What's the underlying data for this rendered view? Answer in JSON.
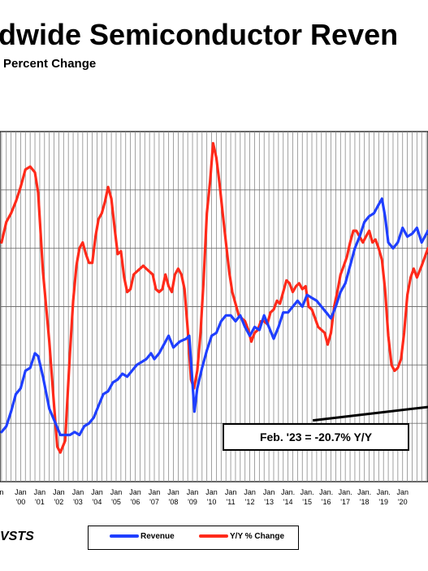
{
  "chart_data": {
    "type": "line",
    "title": "dwide Semiconductor Reven",
    "subtitle": "Percent Change",
    "source_label": "VSTS",
    "annotation": "Feb. '23 = -20.7% Y/Y",
    "x_tick_labels": [
      {
        "top": "n",
        "bottom": "",
        "year": 1999.0
      },
      {
        "top": "Jan",
        "bottom": "'00",
        "year": 2000.0
      },
      {
        "top": "Jan",
        "bottom": "'01",
        "year": 2001.0
      },
      {
        "top": "Jan",
        "bottom": "'02",
        "year": 2002.0
      },
      {
        "top": "Jan",
        "bottom": "'03",
        "year": 2003.0
      },
      {
        "top": "Jan",
        "bottom": "'04",
        "year": 2004.0
      },
      {
        "top": "Jan",
        "bottom": "'05",
        "year": 2005.0
      },
      {
        "top": "Jan",
        "bottom": "'06",
        "year": 2006.0
      },
      {
        "top": "Jan",
        "bottom": "'07",
        "year": 2007.0
      },
      {
        "top": "Jan",
        "bottom": "'08",
        "year": 2008.0
      },
      {
        "top": "Jan",
        "bottom": "'09",
        "year": 2009.0
      },
      {
        "top": "Jan",
        "bottom": "'10",
        "year": 2010.0
      },
      {
        "top": "Jan",
        "bottom": "'11",
        "year": 2011.0
      },
      {
        "top": "Jan",
        "bottom": "'12",
        "year": 2012.0
      },
      {
        "top": "Jan",
        "bottom": "'13",
        "year": 2013.0
      },
      {
        "top": "Jan.",
        "bottom": "'14",
        "year": 2014.0
      },
      {
        "top": "Jan.",
        "bottom": "'15",
        "year": 2015.0
      },
      {
        "top": "Jan.",
        "bottom": "'16",
        "year": 2016.0
      },
      {
        "top": "Jan.",
        "bottom": "'17",
        "year": 2017.0
      },
      {
        "top": "Jan.",
        "bottom": "'18",
        "year": 2018.0
      },
      {
        "top": "Jan.",
        "bottom": "'19",
        "year": 2019.0
      },
      {
        "top": "Jan",
        "bottom": "'20",
        "year": 2020.0
      }
    ],
    "x_range": [
      1998.92,
      2021.33
    ],
    "y_range": [
      0,
      6
    ],
    "series": [
      {
        "name": "Revenue",
        "color": "#1f3fff",
        "points": [
          [
            1999.0,
            0.85
          ],
          [
            1999.25,
            0.95
          ],
          [
            1999.5,
            1.2
          ],
          [
            1999.75,
            1.5
          ],
          [
            2000.0,
            1.6
          ],
          [
            2000.25,
            1.9
          ],
          [
            2000.5,
            1.95
          ],
          [
            2000.75,
            2.2
          ],
          [
            2000.92,
            2.15
          ],
          [
            2001.17,
            1.8
          ],
          [
            2001.5,
            1.25
          ],
          [
            2001.83,
            1.0
          ],
          [
            2002.08,
            0.8
          ],
          [
            2002.33,
            0.8
          ],
          [
            2002.58,
            0.8
          ],
          [
            2002.83,
            0.85
          ],
          [
            2003.08,
            0.8
          ],
          [
            2003.33,
            0.95
          ],
          [
            2003.58,
            1.0
          ],
          [
            2003.83,
            1.1
          ],
          [
            2004.08,
            1.3
          ],
          [
            2004.33,
            1.5
          ],
          [
            2004.58,
            1.55
          ],
          [
            2004.83,
            1.7
          ],
          [
            2005.08,
            1.75
          ],
          [
            2005.33,
            1.85
          ],
          [
            2005.58,
            1.8
          ],
          [
            2005.83,
            1.9
          ],
          [
            2006.08,
            2.0
          ],
          [
            2006.33,
            2.05
          ],
          [
            2006.58,
            2.1
          ],
          [
            2006.83,
            2.2
          ],
          [
            2007.0,
            2.1
          ],
          [
            2007.25,
            2.2
          ],
          [
            2007.5,
            2.35
          ],
          [
            2007.75,
            2.5
          ],
          [
            2008.0,
            2.3
          ],
          [
            2008.33,
            2.4
          ],
          [
            2008.67,
            2.45
          ],
          [
            2008.83,
            2.5
          ],
          [
            2009.0,
            1.7
          ],
          [
            2009.1,
            1.2
          ],
          [
            2009.25,
            1.6
          ],
          [
            2009.5,
            1.95
          ],
          [
            2009.75,
            2.25
          ],
          [
            2010.0,
            2.5
          ],
          [
            2010.25,
            2.55
          ],
          [
            2010.5,
            2.75
          ],
          [
            2010.75,
            2.85
          ],
          [
            2011.0,
            2.85
          ],
          [
            2011.25,
            2.75
          ],
          [
            2011.5,
            2.85
          ],
          [
            2011.75,
            2.65
          ],
          [
            2012.0,
            2.5
          ],
          [
            2012.25,
            2.65
          ],
          [
            2012.5,
            2.6
          ],
          [
            2012.75,
            2.85
          ],
          [
            2013.0,
            2.65
          ],
          [
            2013.25,
            2.45
          ],
          [
            2013.5,
            2.65
          ],
          [
            2013.75,
            2.9
          ],
          [
            2014.0,
            2.9
          ],
          [
            2014.25,
            3.0
          ],
          [
            2014.5,
            3.1
          ],
          [
            2014.75,
            3.0
          ],
          [
            2015.0,
            3.2
          ],
          [
            2015.25,
            3.15
          ],
          [
            2015.5,
            3.1
          ],
          [
            2015.75,
            3.0
          ],
          [
            2016.0,
            2.9
          ],
          [
            2016.25,
            2.8
          ],
          [
            2016.5,
            3.0
          ],
          [
            2016.75,
            3.25
          ],
          [
            2017.0,
            3.4
          ],
          [
            2017.25,
            3.7
          ],
          [
            2017.5,
            4.0
          ],
          [
            2017.75,
            4.2
          ],
          [
            2018.0,
            4.45
          ],
          [
            2018.25,
            4.55
          ],
          [
            2018.5,
            4.6
          ],
          [
            2018.75,
            4.75
          ],
          [
            2018.92,
            4.85
          ],
          [
            2019.08,
            4.55
          ],
          [
            2019.25,
            4.1
          ],
          [
            2019.5,
            4.0
          ],
          [
            2019.75,
            4.1
          ],
          [
            2020.0,
            4.35
          ],
          [
            2020.25,
            4.2
          ],
          [
            2020.5,
            4.25
          ],
          [
            2020.75,
            4.35
          ],
          [
            2021.0,
            4.1
          ],
          [
            2021.33,
            4.3
          ]
        ]
      },
      {
        "name": "Y/Y % Change",
        "color": "#ff2a1a",
        "points": [
          [
            1999.0,
            4.1
          ],
          [
            1999.25,
            4.45
          ],
          [
            1999.5,
            4.6
          ],
          [
            1999.75,
            4.8
          ],
          [
            2000.0,
            5.05
          ],
          [
            2000.25,
            5.35
          ],
          [
            2000.5,
            5.4
          ],
          [
            2000.75,
            5.3
          ],
          [
            2000.92,
            4.95
          ],
          [
            2001.17,
            3.6
          ],
          [
            2001.5,
            2.4
          ],
          [
            2001.75,
            1.3
          ],
          [
            2001.92,
            0.6
          ],
          [
            2002.08,
            0.5
          ],
          [
            2002.33,
            0.7
          ],
          [
            2002.58,
            2.2
          ],
          [
            2002.75,
            3.1
          ],
          [
            2002.92,
            3.7
          ],
          [
            2003.08,
            4.0
          ],
          [
            2003.25,
            4.1
          ],
          [
            2003.42,
            3.9
          ],
          [
            2003.58,
            3.75
          ],
          [
            2003.75,
            3.75
          ],
          [
            2003.92,
            4.2
          ],
          [
            2004.08,
            4.5
          ],
          [
            2004.25,
            4.6
          ],
          [
            2004.42,
            4.8
          ],
          [
            2004.58,
            5.05
          ],
          [
            2004.75,
            4.85
          ],
          [
            2004.92,
            4.35
          ],
          [
            2005.08,
            3.9
          ],
          [
            2005.25,
            3.95
          ],
          [
            2005.42,
            3.5
          ],
          [
            2005.58,
            3.25
          ],
          [
            2005.75,
            3.3
          ],
          [
            2005.92,
            3.55
          ],
          [
            2006.08,
            3.6
          ],
          [
            2006.25,
            3.65
          ],
          [
            2006.42,
            3.7
          ],
          [
            2006.58,
            3.65
          ],
          [
            2006.75,
            3.6
          ],
          [
            2006.92,
            3.55
          ],
          [
            2007.08,
            3.3
          ],
          [
            2007.25,
            3.25
          ],
          [
            2007.42,
            3.3
          ],
          [
            2007.58,
            3.55
          ],
          [
            2007.75,
            3.35
          ],
          [
            2007.92,
            3.25
          ],
          [
            2008.08,
            3.55
          ],
          [
            2008.25,
            3.65
          ],
          [
            2008.42,
            3.55
          ],
          [
            2008.58,
            3.3
          ],
          [
            2008.75,
            2.6
          ],
          [
            2008.92,
            1.75
          ],
          [
            2009.08,
            1.6
          ],
          [
            2009.25,
            1.9
          ],
          [
            2009.42,
            2.55
          ],
          [
            2009.58,
            3.45
          ],
          [
            2009.75,
            4.6
          ],
          [
            2009.92,
            5.15
          ],
          [
            2010.08,
            5.8
          ],
          [
            2010.25,
            5.55
          ],
          [
            2010.42,
            5.1
          ],
          [
            2010.58,
            4.6
          ],
          [
            2010.75,
            4.1
          ],
          [
            2010.92,
            3.6
          ],
          [
            2011.08,
            3.25
          ],
          [
            2011.25,
            3.05
          ],
          [
            2011.42,
            2.85
          ],
          [
            2011.58,
            2.8
          ],
          [
            2011.75,
            2.75
          ],
          [
            2011.92,
            2.6
          ],
          [
            2012.08,
            2.4
          ],
          [
            2012.25,
            2.55
          ],
          [
            2012.42,
            2.6
          ],
          [
            2012.58,
            2.75
          ],
          [
            2012.75,
            2.75
          ],
          [
            2012.92,
            2.7
          ],
          [
            2013.08,
            2.9
          ],
          [
            2013.25,
            2.95
          ],
          [
            2013.42,
            3.1
          ],
          [
            2013.58,
            3.05
          ],
          [
            2013.75,
            3.25
          ],
          [
            2013.92,
            3.45
          ],
          [
            2014.08,
            3.4
          ],
          [
            2014.25,
            3.25
          ],
          [
            2014.42,
            3.35
          ],
          [
            2014.58,
            3.4
          ],
          [
            2014.75,
            3.3
          ],
          [
            2014.92,
            3.35
          ],
          [
            2015.08,
            3.0
          ],
          [
            2015.25,
            2.95
          ],
          [
            2015.42,
            2.8
          ],
          [
            2015.58,
            2.65
          ],
          [
            2015.75,
            2.6
          ],
          [
            2015.92,
            2.55
          ],
          [
            2016.08,
            2.35
          ],
          [
            2016.25,
            2.55
          ],
          [
            2016.42,
            3.0
          ],
          [
            2016.58,
            3.25
          ],
          [
            2016.75,
            3.55
          ],
          [
            2016.92,
            3.7
          ],
          [
            2017.08,
            3.85
          ],
          [
            2017.25,
            4.1
          ],
          [
            2017.42,
            4.3
          ],
          [
            2017.58,
            4.3
          ],
          [
            2017.75,
            4.2
          ],
          [
            2017.92,
            4.1
          ],
          [
            2018.08,
            4.2
          ],
          [
            2018.25,
            4.3
          ],
          [
            2018.42,
            4.1
          ],
          [
            2018.58,
            4.15
          ],
          [
            2018.75,
            4.0
          ],
          [
            2018.92,
            3.8
          ],
          [
            2019.08,
            3.3
          ],
          [
            2019.25,
            2.5
          ],
          [
            2019.42,
            2.0
          ],
          [
            2019.58,
            1.9
          ],
          [
            2019.75,
            1.95
          ],
          [
            2019.92,
            2.1
          ],
          [
            2020.08,
            2.55
          ],
          [
            2020.25,
            3.2
          ],
          [
            2020.42,
            3.5
          ],
          [
            2020.58,
            3.65
          ],
          [
            2020.75,
            3.5
          ],
          [
            2021.0,
            3.7
          ],
          [
            2021.33,
            4.0
          ]
        ]
      }
    ],
    "annotation_line": {
      "from": [
        2015.3,
        1.05
      ],
      "to": [
        2021.33,
        1.28
      ]
    },
    "grid": true,
    "legend": {
      "placement": "bottom-center",
      "items": [
        "Revenue",
        "Y/Y % Change"
      ]
    }
  }
}
